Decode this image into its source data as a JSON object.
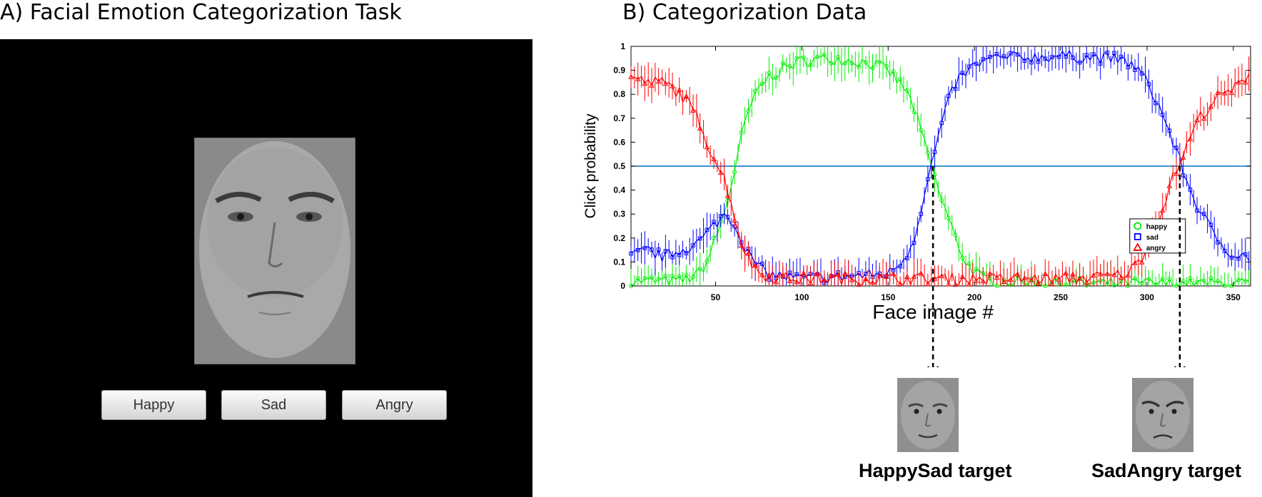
{
  "panel_a": {
    "title": "A) Facial Emotion Categorization Task",
    "buttons": {
      "happy": "Happy",
      "sad": "Sad",
      "angry": "Angry"
    }
  },
  "panel_b": {
    "title": "B) Categorization Data",
    "targets": [
      {
        "label": "HappySad target",
        "face_image": 176
      },
      {
        "label": "SadAngry target",
        "face_image": 319
      }
    ]
  },
  "colors": {
    "happy": "#00ee00",
    "sad": "#0000ff",
    "angry": "#ff0000",
    "threshold": "#0070c0"
  },
  "chart_data": {
    "type": "line",
    "title": "",
    "xlabel": "Face image #",
    "ylabel": "Click probability",
    "xlim": [
      1,
      360
    ],
    "ylim": [
      0,
      1
    ],
    "xticks": [
      50,
      100,
      150,
      200,
      250,
      300,
      350
    ],
    "yticks": [
      0,
      0.1,
      0.2,
      0.3,
      0.4,
      0.5,
      0.6,
      0.7,
      0.8,
      0.9,
      1
    ],
    "threshold": 0.5,
    "legend_placement": "center-right",
    "error_bars": true,
    "series": [
      {
        "name": "happy",
        "marker": "circle",
        "x": [
          1,
          30,
          40,
          45,
          50,
          55,
          60,
          65,
          70,
          75,
          80,
          90,
          100,
          120,
          140,
          150,
          160,
          165,
          170,
          175,
          180,
          185,
          190,
          195,
          200,
          205,
          210,
          220,
          250,
          300,
          350,
          360
        ],
        "y": [
          0.02,
          0.02,
          0.05,
          0.1,
          0.2,
          0.3,
          0.45,
          0.62,
          0.75,
          0.82,
          0.87,
          0.91,
          0.94,
          0.95,
          0.93,
          0.9,
          0.82,
          0.74,
          0.62,
          0.5,
          0.38,
          0.28,
          0.18,
          0.1,
          0.06,
          0.03,
          0.02,
          0.02,
          0.01,
          0.01,
          0.01,
          0.01
        ]
      },
      {
        "name": "sad",
        "marker": "square",
        "x": [
          1,
          10,
          20,
          30,
          40,
          45,
          50,
          55,
          60,
          65,
          70,
          75,
          80,
          100,
          150,
          160,
          165,
          170,
          175,
          180,
          185,
          190,
          200,
          210,
          250,
          280,
          290,
          295,
          300,
          305,
          310,
          315,
          320,
          325,
          330,
          340,
          350,
          360
        ],
        "y": [
          0.12,
          0.15,
          0.12,
          0.15,
          0.18,
          0.22,
          0.26,
          0.3,
          0.27,
          0.2,
          0.12,
          0.08,
          0.05,
          0.03,
          0.05,
          0.12,
          0.2,
          0.35,
          0.5,
          0.65,
          0.77,
          0.86,
          0.92,
          0.95,
          0.96,
          0.95,
          0.93,
          0.9,
          0.85,
          0.78,
          0.7,
          0.6,
          0.5,
          0.4,
          0.32,
          0.2,
          0.13,
          0.12
        ]
      },
      {
        "name": "angry",
        "marker": "triangle",
        "x": [
          1,
          10,
          20,
          30,
          40,
          45,
          50,
          55,
          60,
          65,
          70,
          75,
          80,
          100,
          150,
          200,
          250,
          280,
          290,
          295,
          300,
          305,
          310,
          315,
          320,
          325,
          330,
          340,
          350,
          355,
          360
        ],
        "y": [
          0.87,
          0.85,
          0.85,
          0.8,
          0.7,
          0.6,
          0.52,
          0.45,
          0.32,
          0.18,
          0.1,
          0.06,
          0.04,
          0.03,
          0.03,
          0.03,
          0.03,
          0.04,
          0.06,
          0.1,
          0.16,
          0.25,
          0.35,
          0.45,
          0.53,
          0.62,
          0.7,
          0.78,
          0.82,
          0.85,
          0.9
        ]
      }
    ]
  }
}
